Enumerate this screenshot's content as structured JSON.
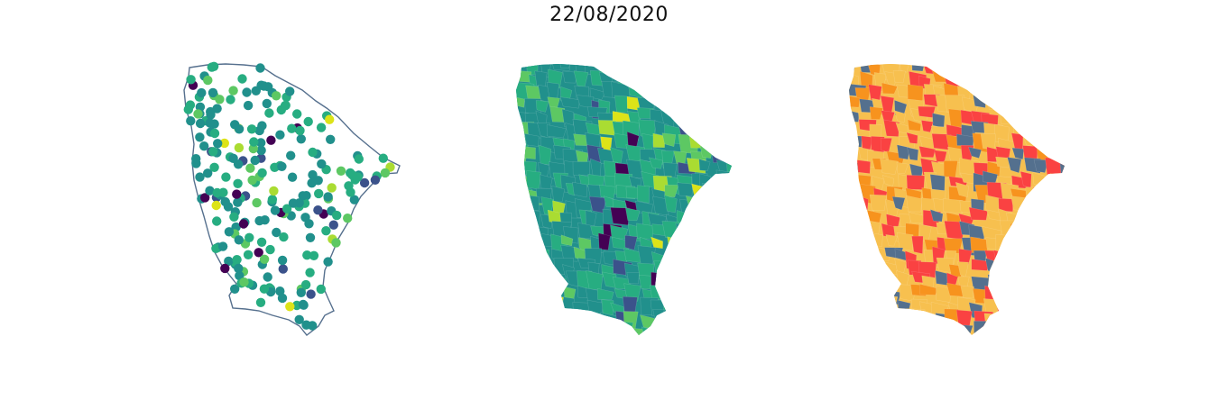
{
  "title": "22/08/2020",
  "colors": {
    "outline": "#56708e",
    "viridis": [
      "#440154",
      "#3b528b",
      "#21908c",
      "#27ad81",
      "#5dc863",
      "#aadc32",
      "#dde318"
    ],
    "categorical": [
      "#fa4242",
      "#f7c04f",
      "#f7931e",
      "#54708e"
    ]
  },
  "panels": [
    {
      "name": "station-points-map",
      "kind": "points"
    },
    {
      "name": "municipality-viridis-map",
      "kind": "choropleth-viridis"
    },
    {
      "name": "municipality-category-map",
      "kind": "choropleth-categorical"
    }
  ]
}
